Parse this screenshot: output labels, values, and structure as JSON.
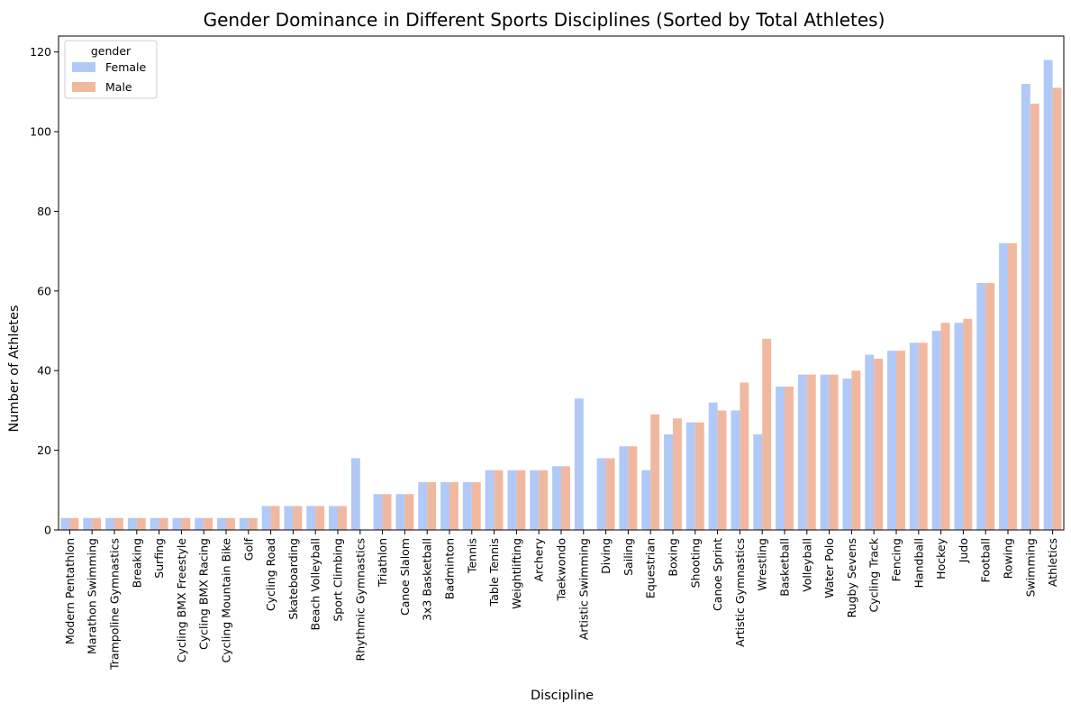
{
  "chart_data": {
    "type": "bar",
    "title": "Gender Dominance in Different Sports Disciplines (Sorted by Total Athletes)",
    "xlabel": "Discipline",
    "ylabel": "Number of Athletes",
    "ylim": [
      0,
      124
    ],
    "yticks": [
      0,
      20,
      40,
      60,
      80,
      100,
      120
    ],
    "grid": false,
    "legend": {
      "title": "gender",
      "position": "top-left"
    },
    "categories": [
      "Modern Pentathlon",
      "Marathon Swimming",
      "Trampoline Gymnastics",
      "Breaking",
      "Surfing",
      "Cycling BMX Freestyle",
      "Cycling BMX Racing",
      "Cycling Mountain Bike",
      "Golf",
      "Cycling Road",
      "Skateboarding",
      "Beach Volleyball",
      "Sport Climbing",
      "Rhythmic Gymnastics",
      "Triathlon",
      "Canoe Slalom",
      "3x3 Basketball",
      "Badminton",
      "Tennis",
      "Table Tennis",
      "Weightlifting",
      "Archery",
      "Taekwondo",
      "Artistic Swimming",
      "Diving",
      "Sailing",
      "Equestrian",
      "Boxing",
      "Shooting",
      "Canoe Sprint",
      "Artistic Gymnastics",
      "Wrestling",
      "Basketball",
      "Volleyball",
      "Water Polo",
      "Rugby Sevens",
      "Cycling Track",
      "Fencing",
      "Handball",
      "Hockey",
      "Judo",
      "Football",
      "Rowing",
      "Swimming",
      "Athletics"
    ],
    "series": [
      {
        "name": "Female",
        "color": "#b0c9f7",
        "values": [
          3,
          3,
          3,
          3,
          3,
          3,
          3,
          3,
          3,
          6,
          6,
          6,
          6,
          18,
          9,
          9,
          12,
          12,
          12,
          15,
          15,
          15,
          16,
          33,
          18,
          21,
          15,
          24,
          27,
          32,
          30,
          24,
          36,
          39,
          39,
          38,
          44,
          45,
          47,
          50,
          52,
          62,
          72,
          112,
          118
        ]
      },
      {
        "name": "Male",
        "color": "#f1b8a0",
        "values": [
          3,
          3,
          3,
          3,
          3,
          3,
          3,
          3,
          3,
          6,
          6,
          6,
          6,
          0,
          9,
          9,
          12,
          12,
          12,
          15,
          15,
          15,
          16,
          0,
          18,
          21,
          29,
          28,
          27,
          30,
          37,
          48,
          36,
          39,
          39,
          40,
          43,
          45,
          47,
          52,
          53,
          62,
          72,
          107,
          111
        ]
      }
    ]
  }
}
